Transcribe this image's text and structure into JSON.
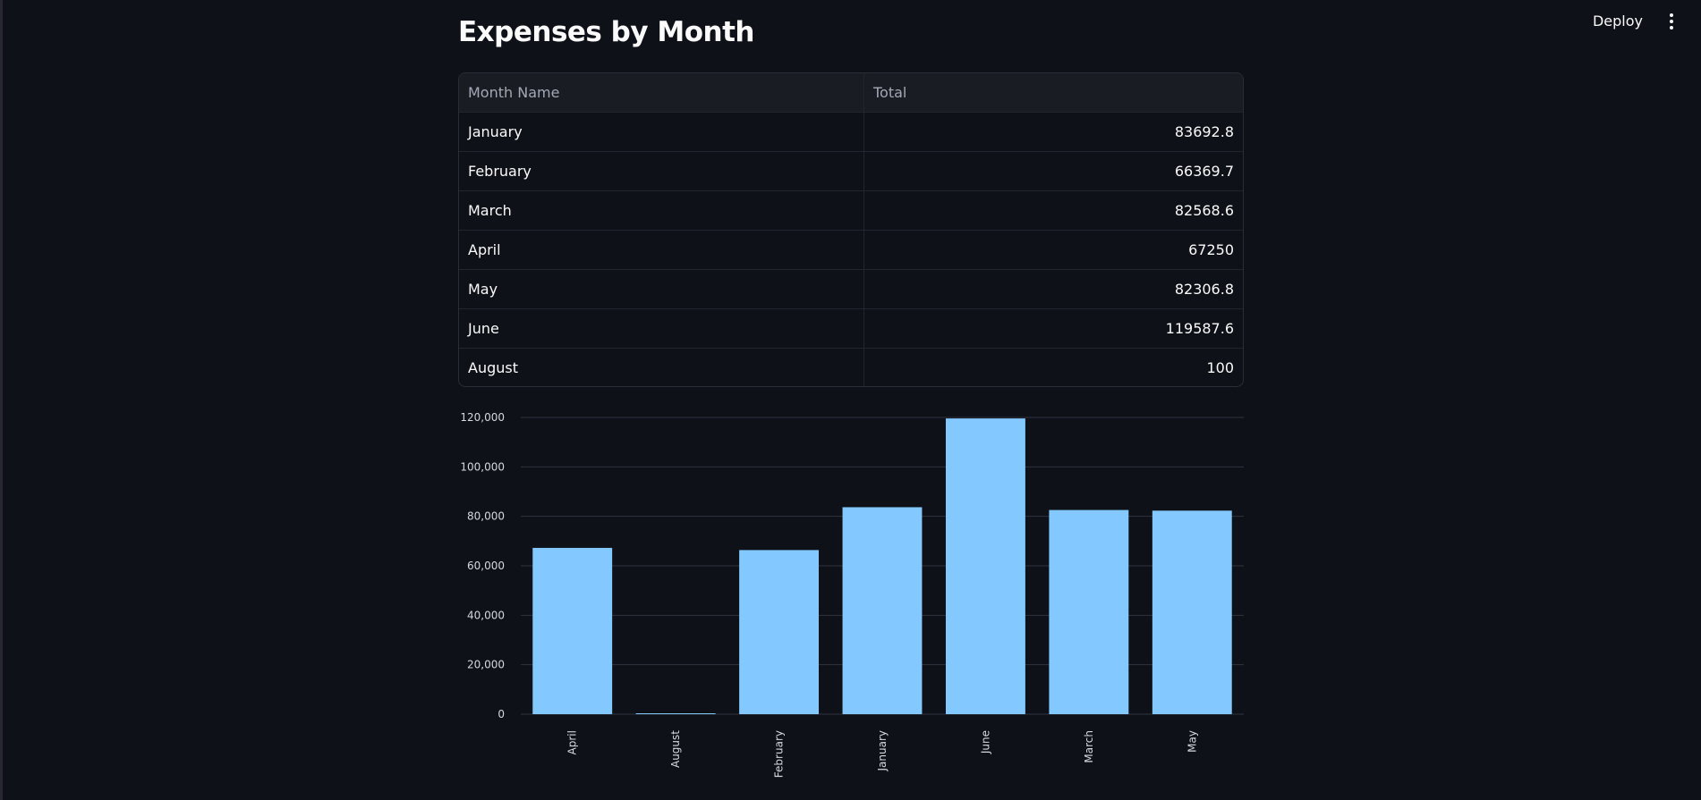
{
  "header": {
    "deploy_label": "Deploy"
  },
  "page": {
    "title": "Expenses by Month"
  },
  "table": {
    "columns": [
      "Month Name",
      "Total"
    ],
    "rows": [
      [
        "January",
        "83692.8"
      ],
      [
        "February",
        "66369.7"
      ],
      [
        "March",
        "82568.6"
      ],
      [
        "April",
        "67250"
      ],
      [
        "May",
        "82306.8"
      ],
      [
        "June",
        "119587.6"
      ],
      [
        "August",
        "100"
      ]
    ]
  },
  "chart_data": {
    "type": "bar",
    "categories": [
      "April",
      "August",
      "February",
      "January",
      "June",
      "March",
      "May"
    ],
    "values": [
      67250,
      100,
      66369.7,
      83692.8,
      119587.6,
      82568.6,
      82306.8
    ],
    "yticks": [
      0,
      20000,
      40000,
      60000,
      80000,
      100000,
      120000
    ],
    "ylim": [
      0,
      120000
    ],
    "bar_color": "#83c9ff",
    "grid": true,
    "x_label_orientation": "vertical"
  },
  "colors": {
    "background": "#0e1117",
    "text": "#fafafa",
    "grid": "#31333f",
    "bar": "#83c9ff"
  }
}
